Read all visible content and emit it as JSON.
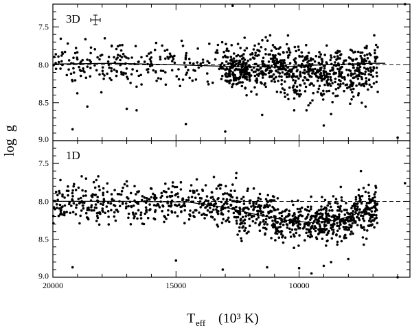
{
  "chart_data": [
    {
      "type": "scatter",
      "panel": "3D",
      "label": "3D",
      "error_bar_symbol": "+",
      "xlim": [
        20000,
        5500
      ],
      "ylim": [
        9.0,
        7.2
      ],
      "y_ticks": [
        "7.5",
        "8.0",
        "8.5",
        "9.0"
      ],
      "y_tick_values": [
        7.5,
        8.0,
        8.5,
        9.0
      ],
      "reference_line": 8.0,
      "error_bar": {
        "dx": 120,
        "dy": 0.05
      },
      "trend": [
        [
          20000,
          7.99
        ],
        [
          17500,
          7.98
        ],
        [
          15000,
          8.0
        ],
        [
          13000,
          8.02
        ],
        [
          11000,
          8.03
        ],
        [
          9000,
          8.0
        ],
        [
          7000,
          7.98
        ],
        [
          6500,
          7.98
        ]
      ],
      "series": [
        {
          "density_bins": [
            {
              "x": [
                6800,
                20000
              ],
              "count": 170,
              "y_mean": 7.95,
              "y_spread": 0.13
            },
            {
              "x": [
                6800,
                20000
              ],
              "count": 240,
              "y_mean": 8.03,
              "y_spread": 0.12
            },
            {
              "x": [
                13000,
                12000
              ],
              "count": 100,
              "y_mean": 8.07,
              "y_spread": 0.1
            },
            {
              "x": [
                13000,
                6800
              ],
              "count": 420,
              "y_mean": 8.04,
              "y_spread": 0.15
            },
            {
              "x": [
                11000,
                7200
              ],
              "count": 130,
              "y_mean": 8.2,
              "y_spread": 0.14
            }
          ],
          "outliers": [
            [
              19200,
              8.85
            ],
            [
              18600,
              8.55
            ],
            [
              13000,
              8.88
            ],
            [
              12700,
              7.22
            ],
            [
              11500,
              8.66
            ],
            [
              9700,
              8.6
            ],
            [
              9000,
              8.8
            ],
            [
              8700,
              8.65
            ],
            [
              10200,
              8.6
            ],
            [
              5700,
              7.2
            ],
            [
              6000,
              8.96
            ],
            [
              7600,
              8.4
            ],
            [
              17000,
              8.58
            ],
            [
              14600,
              8.78
            ],
            [
              16600,
              8.6
            ],
            [
              7300,
              8.55
            ]
          ]
        }
      ]
    },
    {
      "type": "scatter",
      "panel": "1D",
      "label": "1D",
      "xlim": [
        20000,
        5500
      ],
      "ylim": [
        9.0,
        7.2
      ],
      "y_ticks": [
        "7.5",
        "8.0",
        "8.5",
        "9.0"
      ],
      "y_tick_values": [
        7.5,
        8.0,
        8.5,
        9.0
      ],
      "reference_line": 8.0,
      "trend": [
        [
          20000,
          8.0
        ],
        [
          17000,
          8.0
        ],
        [
          14500,
          8.01
        ],
        [
          13000,
          8.08
        ],
        [
          11800,
          8.17
        ],
        [
          10500,
          8.25
        ],
        [
          9500,
          8.28
        ],
        [
          8500,
          8.25
        ],
        [
          7800,
          8.18
        ],
        [
          7200,
          8.1
        ],
        [
          6800,
          8.04
        ]
      ],
      "series": [
        {
          "density_bins": [
            {
              "x": [
                14000,
                20000
              ],
              "count": 330,
              "y_mean": 8.01,
              "y_spread": 0.13
            },
            {
              "x": [
                12500,
                14000
              ],
              "count": 120,
              "y_mean": 8.06,
              "y_spread": 0.13
            },
            {
              "x": [
                11000,
                12500
              ],
              "count": 150,
              "y_mean": 8.16,
              "y_spread": 0.14
            },
            {
              "x": [
                9000,
                11000
              ],
              "count": 230,
              "y_mean": 8.26,
              "y_spread": 0.13
            },
            {
              "x": [
                7800,
                9000
              ],
              "count": 170,
              "y_mean": 8.23,
              "y_spread": 0.14
            },
            {
              "x": [
                6800,
                7800
              ],
              "count": 130,
              "y_mean": 8.1,
              "y_spread": 0.15
            }
          ],
          "outliers": [
            [
              19200,
              8.87
            ],
            [
              12700,
              7.78
            ],
            [
              11300,
              8.87
            ],
            [
              9500,
              8.95
            ],
            [
              9000,
              8.85
            ],
            [
              8700,
              8.8
            ],
            [
              10000,
              8.88
            ],
            [
              5700,
              7.76
            ],
            [
              6000,
              9.0
            ],
            [
              8000,
              8.76
            ],
            [
              13100,
              8.9
            ],
            [
              15000,
              8.78
            ]
          ]
        }
      ]
    }
  ],
  "shared_axes": {
    "x_ticks": [
      "20000",
      "15000",
      "10000"
    ],
    "x_tick_values": [
      20000,
      15000,
      10000
    ],
    "y_title": "log  g",
    "x_title_main": "T",
    "x_title_sub": "eff",
    "x_title_rest": "(10³ K)"
  }
}
